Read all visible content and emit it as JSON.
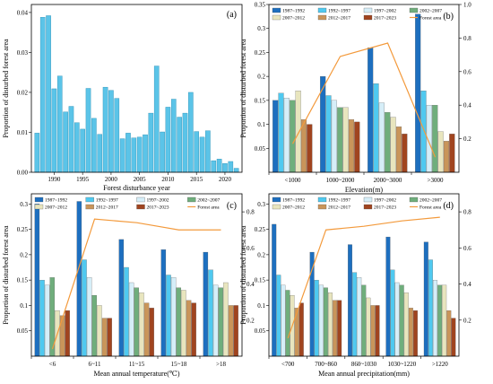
{
  "chart_data": [
    {
      "id": "a",
      "type": "bar",
      "panel_label": "(a)",
      "xlabel": "Forest disturbance year",
      "ylabel": "Proportion of disturbed forest area",
      "x": [
        1987,
        1988,
        1989,
        1990,
        1991,
        1992,
        1993,
        1994,
        1995,
        1996,
        1997,
        1998,
        1999,
        2000,
        2001,
        2002,
        2003,
        2004,
        2005,
        2006,
        2007,
        2008,
        2009,
        2010,
        2011,
        2012,
        2013,
        2014,
        2015,
        2016,
        2017,
        2018,
        2019,
        2020,
        2021,
        2022
      ],
      "values": [
        0.0098,
        0.0388,
        0.0392,
        0.0209,
        0.0241,
        0.0151,
        0.0165,
        0.0124,
        0.0108,
        0.021,
        0.0135,
        0.0095,
        0.0213,
        0.0205,
        0.0185,
        0.0084,
        0.0098,
        0.0086,
        0.0088,
        0.0094,
        0.0148,
        0.0266,
        0.0101,
        0.0163,
        0.0183,
        0.0138,
        0.0148,
        0.02,
        0.0102,
        0.0088,
        0.0104,
        0.0029,
        0.0033,
        0.0022,
        0.0027,
        0.001
      ],
      "xticks": [
        "1990",
        "1995",
        "2000",
        "2005",
        "2010",
        "2015",
        "2020"
      ],
      "xlim": [
        1986,
        2023
      ],
      "ylim": [
        0,
        0.042
      ],
      "color": "#5BC4E8"
    },
    {
      "id": "b",
      "type": "bar",
      "panel_label": "(b)",
      "categories": [
        "<1000",
        "1000~2000",
        "2000~3000",
        ">3000"
      ],
      "xlabel": "Elevation(m)",
      "ylabel": "Proportion of disturbed forest area",
      "ylim": [
        0,
        0.35
      ],
      "ylim_right": [
        0,
        1
      ],
      "series": [
        {
          "name": "1987~1992",
          "color": "#1D6FBF",
          "values": [
            0.15,
            0.2,
            0.26,
            0.33
          ]
        },
        {
          "name": "1992~1997",
          "color": "#4FC9F0",
          "values": [
            0.165,
            0.16,
            0.185,
            0.17
          ]
        },
        {
          "name": "1997~2002",
          "color": "#D6EEF8",
          "values": [
            0.155,
            0.15,
            0.145,
            0.14
          ]
        },
        {
          "name": "2002~2007",
          "color": "#6FAE7C",
          "values": [
            0.15,
            0.135,
            0.125,
            0.14
          ]
        },
        {
          "name": "2007~2012",
          "color": "#E8E5BE",
          "values": [
            0.17,
            0.135,
            0.115,
            0.085
          ]
        },
        {
          "name": "2012~2017",
          "color": "#C9955A",
          "values": [
            0.11,
            0.11,
            0.095,
            0.065
          ]
        },
        {
          "name": "2017~2023",
          "color": "#A0441F",
          "values": [
            0.1,
            0.105,
            0.08,
            0.08
          ]
        }
      ],
      "line": {
        "name": "Forest area",
        "color": "#F39A3C",
        "values": [
          0.17,
          0.69,
          0.77,
          0.09
        ]
      },
      "legend_row1": [
        "1987~1992",
        "1992~1997",
        "1997~2002",
        "2002~2007"
      ],
      "legend_row2": [
        "2007~2012",
        "2012~2017",
        "2017~2023",
        "Forest area"
      ]
    },
    {
      "id": "c",
      "type": "bar",
      "panel_label": "(c)",
      "categories": [
        "<6",
        "6~11",
        "11~15",
        "15~18",
        ">18"
      ],
      "xlabel": "Mean annual temperature(℃)",
      "ylabel": "Proportion of disturbed forest area",
      "ylim": [
        0,
        0.32
      ],
      "ylim_right": [
        0,
        0.9
      ],
      "series": [
        {
          "name": "1987~1992",
          "color": "#1D6FBF",
          "values": [
            0.3,
            0.305,
            0.23,
            0.21,
            0.205
          ]
        },
        {
          "name": "1992~1997",
          "color": "#4FC9F0",
          "values": [
            0.15,
            0.19,
            0.175,
            0.16,
            0.17
          ]
        },
        {
          "name": "1997~2002",
          "color": "#D6EEF8",
          "values": [
            0.14,
            0.155,
            0.145,
            0.155,
            0.14
          ]
        },
        {
          "name": "2002~2007",
          "color": "#6FAE7C",
          "values": [
            0.155,
            0.12,
            0.135,
            0.135,
            0.135
          ]
        },
        {
          "name": "2007~2012",
          "color": "#E8E5BE",
          "values": [
            0.09,
            0.1,
            0.125,
            0.13,
            0.145
          ]
        },
        {
          "name": "2012~2017",
          "color": "#C9955A",
          "values": [
            0.08,
            0.075,
            0.105,
            0.11,
            0.1
          ]
        },
        {
          "name": "2017~2023",
          "color": "#A0441F",
          "values": [
            0.09,
            0.075,
            0.095,
            0.105,
            0.1
          ]
        }
      ],
      "line": {
        "name": "Forest area",
        "color": "#F39A3C",
        "values": [
          0.04,
          0.76,
          0.74,
          0.7,
          0.7
        ]
      },
      "legend_row1": [
        "1987~1992",
        "1992~1997",
        "1997~2002",
        "2002~2007"
      ],
      "legend_row2": [
        "2007~2012",
        "2012~2017",
        "2017~2023",
        "Forest area"
      ]
    },
    {
      "id": "d",
      "type": "bar",
      "panel_label": "(d)",
      "categories": [
        "<700",
        "700~860",
        "860~1030",
        "1030~1220",
        ">1220"
      ],
      "xlabel": "Mean annual precipitation(mm)",
      "ylabel": "Proportion of disturbed forest area",
      "ylim": [
        0,
        0.32
      ],
      "ylim_right": [
        0,
        0.9
      ],
      "series": [
        {
          "name": "1987~1992",
          "color": "#1D6FBF",
          "values": [
            0.26,
            0.205,
            0.22,
            0.235,
            0.225
          ]
        },
        {
          "name": "1992~1997",
          "color": "#4FC9F0",
          "values": [
            0.16,
            0.15,
            0.165,
            0.17,
            0.19
          ]
        },
        {
          "name": "1997~2002",
          "color": "#D6EEF8",
          "values": [
            0.14,
            0.14,
            0.155,
            0.145,
            0.15
          ]
        },
        {
          "name": "2002~2007",
          "color": "#6FAE7C",
          "values": [
            0.13,
            0.135,
            0.14,
            0.14,
            0.14
          ]
        },
        {
          "name": "2007~2012",
          "color": "#E8E5BE",
          "values": [
            0.12,
            0.125,
            0.115,
            0.125,
            0.14
          ]
        },
        {
          "name": "2012~2017",
          "color": "#C9955A",
          "values": [
            0.095,
            0.11,
            0.1,
            0.095,
            0.09
          ]
        },
        {
          "name": "2017~2023",
          "color": "#A0441F",
          "values": [
            0.105,
            0.11,
            0.1,
            0.09,
            0.075
          ]
        }
      ],
      "line": {
        "name": "Forest area",
        "color": "#F39A3C",
        "values": [
          0.1,
          0.7,
          0.72,
          0.75,
          0.77
        ]
      },
      "legend_row1": [
        "1987~1992",
        "1992~1997",
        "1997~2002",
        "2002~2007"
      ],
      "legend_row2": [
        "2007~2012",
        "2012~2017",
        "2017~2023",
        "Forest area"
      ]
    }
  ]
}
